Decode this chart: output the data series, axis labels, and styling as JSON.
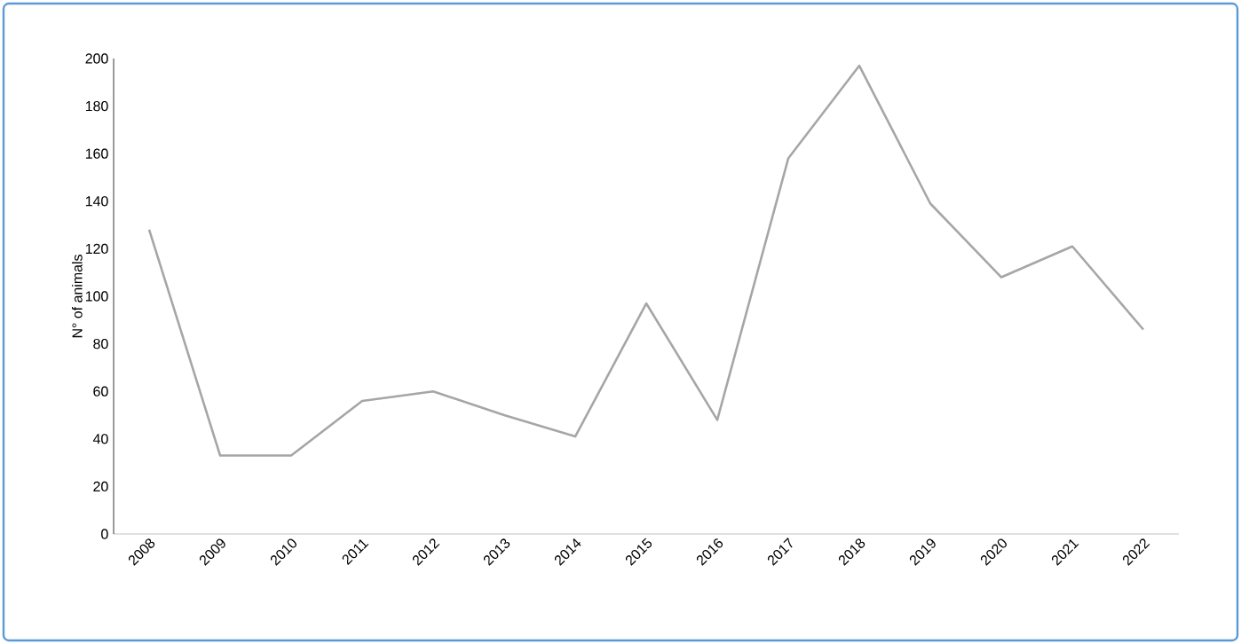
{
  "chart_data": {
    "type": "line",
    "ylabel": "N° of animals",
    "categories": [
      "2008",
      "2009",
      "2010",
      "2011",
      "2012",
      "2013",
      "2014",
      "2015",
      "2016",
      "2017",
      "2018",
      "2019",
      "2020",
      "2021",
      "2022"
    ],
    "series": [
      {
        "color": "#a6a6a6",
        "values": [
          128,
          33,
          33,
          56,
          60,
          50,
          41,
          97,
          48,
          158,
          197,
          139,
          108,
          121,
          86
        ]
      }
    ],
    "ylim": [
      0,
      200
    ],
    "yticks": [
      0,
      20,
      40,
      60,
      80,
      100,
      120,
      140,
      160,
      180,
      200
    ],
    "grid": false
  }
}
